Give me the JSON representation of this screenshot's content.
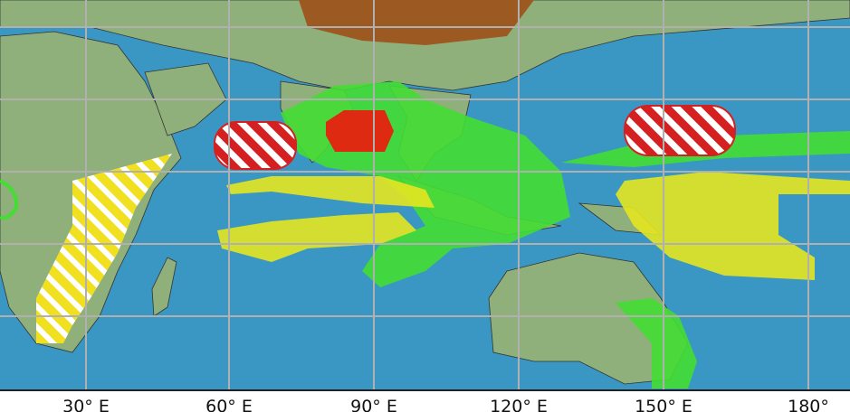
{
  "map": {
    "longitude_labels": [
      "30° E",
      "60° E",
      "90° E",
      "120° E",
      "150° E",
      "180°"
    ]
  }
}
